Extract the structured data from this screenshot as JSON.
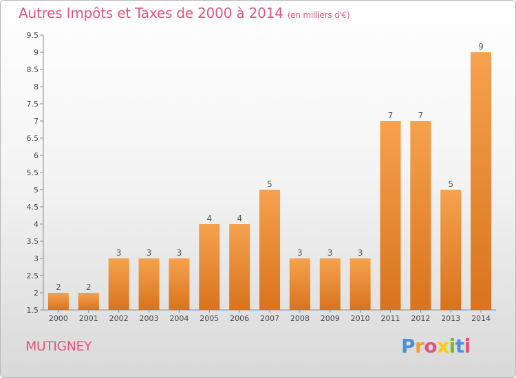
{
  "header": {
    "title": "Autres Impôts et Taxes de 2000 à 2014",
    "subtitle": "(en milliers d'€)"
  },
  "footer": {
    "city": "MUTIGNEY",
    "brand": "Proxiti",
    "brand_colors": [
      "#4a90d9",
      "#f0a030",
      "#e1557d",
      "#ffcc00",
      "#77b82a",
      "#4a90d9",
      "#e1557d"
    ]
  },
  "colors": {
    "accent": "#e1557d",
    "bar_top": "#f5a24e",
    "bar_bottom": "#d9731d",
    "axis": "#888888",
    "tick_text": "#444444",
    "label_text": "#555555"
  },
  "chart_data": {
    "type": "bar",
    "title": "Autres Impôts et Taxes de 2000 à 2014",
    "subtitle": "(en milliers d'€)",
    "categories": [
      "2000",
      "2001",
      "2002",
      "2003",
      "2004",
      "2005",
      "2006",
      "2007",
      "2008",
      "2009",
      "2010",
      "2011",
      "2012",
      "2013",
      "2014"
    ],
    "values": [
      2,
      2,
      3,
      3,
      3,
      4,
      4,
      5,
      3,
      3,
      3,
      7,
      7,
      5,
      9
    ],
    "data_labels": [
      "2",
      "2",
      "3",
      "3",
      "3",
      "4",
      "4",
      "5",
      "3",
      "3",
      "3",
      "7",
      "7",
      "5",
      "9"
    ],
    "ylim": [
      1.5,
      9.5
    ],
    "yticks": [
      "1.5",
      "2",
      "2.5",
      "3",
      "3.5",
      "4",
      "4.5",
      "5",
      "5.5",
      "6",
      "6.5",
      "7",
      "7.5",
      "8",
      "8.5",
      "9",
      "9.5"
    ],
    "xlabel": "",
    "ylabel": "",
    "grid": false
  }
}
